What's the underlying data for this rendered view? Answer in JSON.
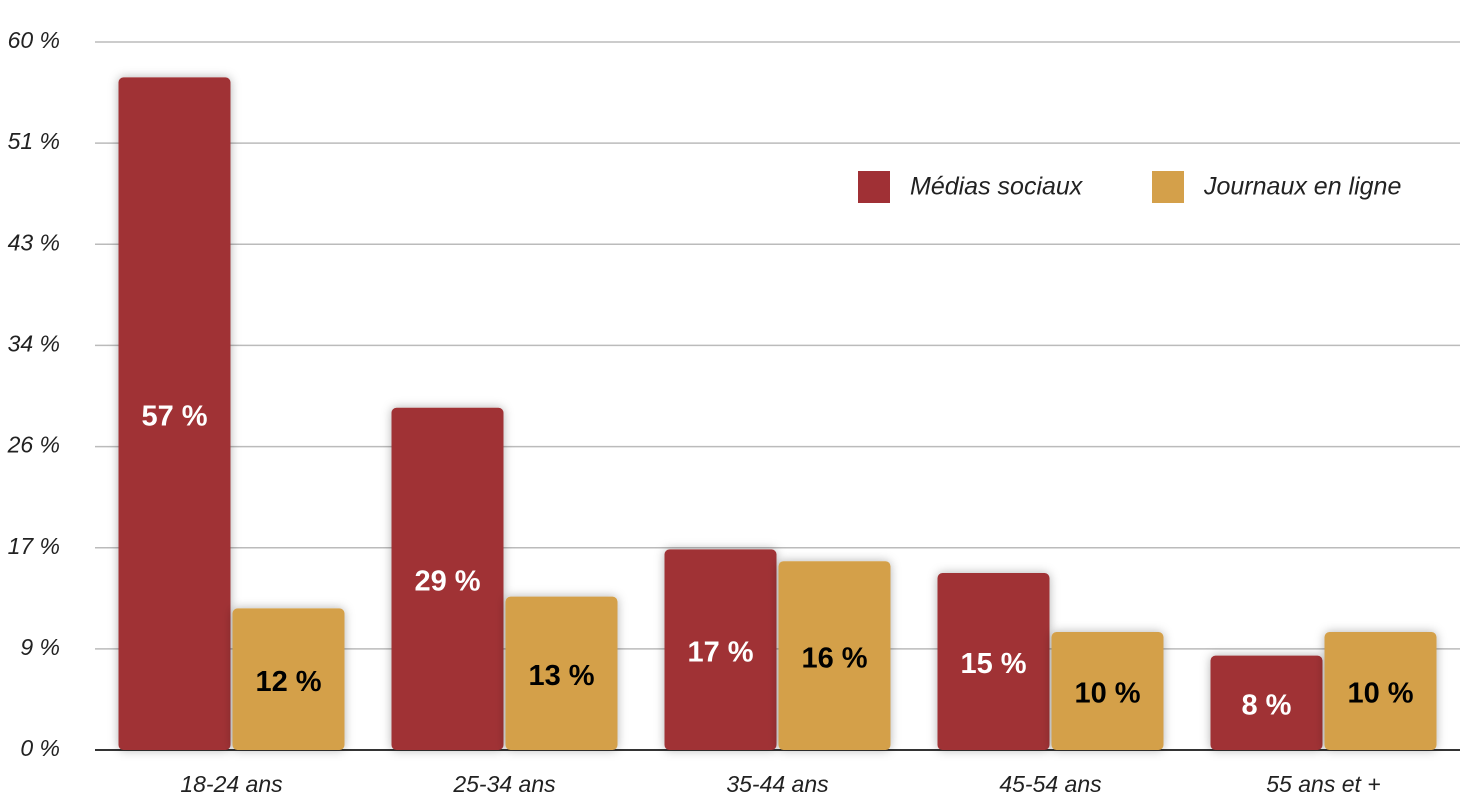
{
  "chart_data": {
    "type": "bar",
    "categories": [
      "18-24 ans",
      "25-34 ans",
      "35-44 ans",
      "45-54 ans",
      "55 ans et +"
    ],
    "series": [
      {
        "name": "Médias sociaux",
        "color": "#a03035",
        "values": [
          57,
          29,
          17,
          15,
          8
        ],
        "value_labels": [
          "57 %",
          "29 %",
          "17 %",
          "15 %",
          "8 %"
        ],
        "label_color": "#ffffff"
      },
      {
        "name": "Journaux en ligne",
        "color": "#d4a04a",
        "values": [
          12,
          13,
          16,
          10,
          10
        ],
        "value_labels": [
          "12 %",
          "13 %",
          "16 %",
          "10 %",
          "10 %"
        ],
        "label_color": "#000000"
      }
    ],
    "ylim": [
      0,
      60
    ],
    "yticks": [
      {
        "value": 0,
        "label": "0 %"
      },
      {
        "value": 8.57,
        "label": "9 %"
      },
      {
        "value": 17.14,
        "label": "17 %"
      },
      {
        "value": 25.71,
        "label": "26 %"
      },
      {
        "value": 34.29,
        "label": "34 %"
      },
      {
        "value": 42.86,
        "label": "43 %"
      },
      {
        "value": 51.43,
        "label": "51 %"
      },
      {
        "value": 60,
        "label": "60 %"
      }
    ],
    "grid": true,
    "legend": "top-right"
  }
}
